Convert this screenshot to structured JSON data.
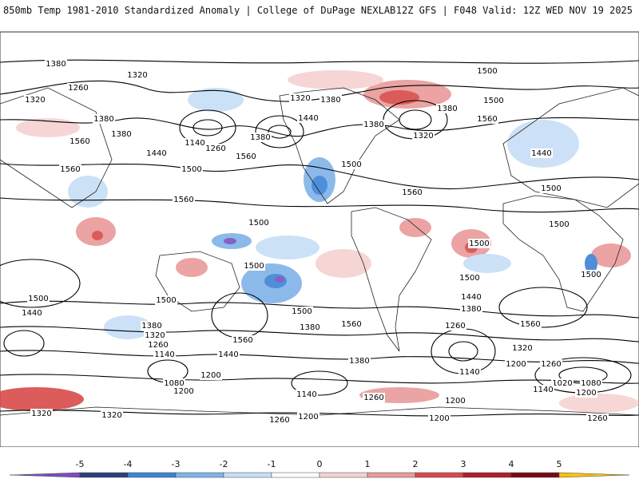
{
  "header": {
    "left_title": "850mb Temp 1981-2010 Standardized Anomaly | College of DuPage NEXLAB",
    "right_title": "12Z GFS | F048 Valid: 12Z WED NOV 19 2025"
  },
  "colorbar": {
    "ticks": [
      "-5",
      "-4",
      "-3",
      "-2",
      "-1",
      "0",
      "1",
      "2",
      "3",
      "4",
      "5"
    ],
    "colors": [
      "#7b4fc0",
      "#2c3f80",
      "#3d83d6",
      "#7fb3e8",
      "#c6def6",
      "#ffffff",
      "#f6d1d1",
      "#e99a9a",
      "#d84a4a",
      "#b01f2a",
      "#7a0a12",
      "#f7c20f"
    ]
  },
  "contour_labels": [
    "1380",
    "1320",
    "1260",
    "1320",
    "1380",
    "1560",
    "1440",
    "1560",
    "1500",
    "1140",
    "1260",
    "1380",
    "1320",
    "1380",
    "1440",
    "1500",
    "1560",
    "1500",
    "1380",
    "1320",
    "1380",
    "1560",
    "1500",
    "1440",
    "1500",
    "1500",
    "1500",
    "1560",
    "1500",
    "1500",
    "1500",
    "1500",
    "1440",
    "1500",
    "1380",
    "1320",
    "1260",
    "1200",
    "1140",
    "1080",
    "1200",
    "1440",
    "1560",
    "1380",
    "1500",
    "1560",
    "1380",
    "1440",
    "1380",
    "1260",
    "1320",
    "1200",
    "1140",
    "1560",
    "1200",
    "1020",
    "1080",
    "1200",
    "1140",
    "1260",
    "1140",
    "1320",
    "1200",
    "1260",
    "1200",
    "1260",
    "1320",
    "1500",
    "1260",
    "1560",
    "1380",
    "1320"
  ],
  "map_info": {
    "projection": "global cylindrical",
    "variable": "850mb Temp Standardized Anomaly",
    "contours": "geopotential height"
  }
}
